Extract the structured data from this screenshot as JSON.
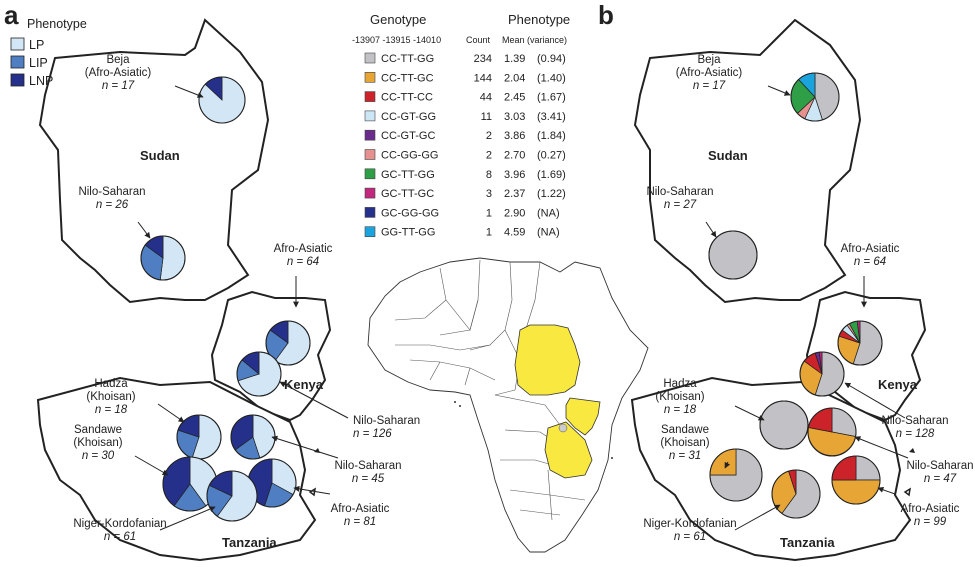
{
  "panels": {
    "a": "a",
    "b": "b"
  },
  "legend": {
    "title": "Phenotype",
    "items": [
      {
        "label": "LP",
        "color": "#d3e6f5"
      },
      {
        "label": "LIP",
        "color": "#4f7fc2"
      },
      {
        "label": "LNP",
        "color": "#25308a"
      }
    ]
  },
  "countries": {
    "sudan": "Sudan",
    "kenya": "Kenya",
    "tanzania": "Tanzania"
  },
  "table": {
    "col_genotype": "Genotype",
    "col_phenotype": "Phenotype",
    "sub_genotype": "-13907 -13915 -14010",
    "sub_count": "Count",
    "sub_mean": "Mean (variance)",
    "rows": [
      {
        "genotype": "CC-TT-GG",
        "count": "234",
        "mean": "1.39",
        "variance": "(0.94)",
        "color": "#c2c2c6"
      },
      {
        "genotype": "CC-TT-GC",
        "count": "144",
        "mean": "2.04",
        "variance": "(1.40)",
        "color": "#e7a535"
      },
      {
        "genotype": "CC-TT-CC",
        "count": "44",
        "mean": "2.45",
        "variance": "(1.67)",
        "color": "#cc2229"
      },
      {
        "genotype": "CC-GT-GG",
        "count": "11",
        "mean": "3.03",
        "variance": "(3.41)",
        "color": "#cde6f5"
      },
      {
        "genotype": "CC-GT-GC",
        "count": "2",
        "mean": "3.86",
        "variance": "(1.84)",
        "color": "#6a2b8c"
      },
      {
        "genotype": "CC-GG-GG",
        "count": "2",
        "mean": "2.70",
        "variance": "(0.27)",
        "color": "#e79090"
      },
      {
        "genotype": "GC-TT-GG",
        "count": "8",
        "mean": "3.96",
        "variance": "(1.69)",
        "color": "#2e9e47"
      },
      {
        "genotype": "GC-TT-GC",
        "count": "3",
        "mean": "2.37",
        "variance": "(1.22)",
        "color": "#c2277e"
      },
      {
        "genotype": "GC-GG-GG",
        "count": "1",
        "mean": "2.90",
        "variance": "(NA)",
        "color": "#25308a"
      },
      {
        "genotype": "GG-TT-GG",
        "count": "1",
        "mean": "4.59",
        "variance": "(NA)",
        "color": "#1aa3dd"
      }
    ]
  },
  "panel_a": {
    "groups": [
      {
        "id": "beja",
        "name": [
          "Beja",
          "(Afro-Asiatic)"
        ],
        "n": "n = 17",
        "slices": [
          0.87,
          0.0,
          0.13
        ]
      },
      {
        "id": "nilo_sudan",
        "name": [
          "Nilo-Saharan"
        ],
        "n": "n = 26",
        "slices": [
          0.52,
          0.33,
          0.15
        ]
      },
      {
        "id": "afro_kenya",
        "name": [
          "Afro-Asiatic"
        ],
        "n": "n = 64",
        "slices": [
          0.6,
          0.25,
          0.15
        ]
      },
      {
        "id": "nilo_kenya",
        "name": [
          "Nilo-Saharan"
        ],
        "n": "n = 126",
        "slices": [
          0.7,
          0.16,
          0.14
        ]
      },
      {
        "id": "hadza",
        "name": [
          "Hadza",
          "(Khoisan)"
        ],
        "n": "n = 18",
        "slices": [
          0.55,
          0.25,
          0.2
        ]
      },
      {
        "id": "sandawe",
        "name": [
          "Sandawe",
          "(Khoisan)"
        ],
        "n": "n = 30",
        "slices": [
          0.4,
          0.2,
          0.4
        ]
      },
      {
        "id": "nilo_tz",
        "name": [
          "Nilo-Saharan"
        ],
        "n": "n = 45",
        "slices": [
          0.45,
          0.2,
          0.35
        ]
      },
      {
        "id": "afro_tz",
        "name": [
          "Afro-Asiatic"
        ],
        "n": "n = 81",
        "slices": [
          0.33,
          0.22,
          0.45
        ]
      },
      {
        "id": "niger",
        "name": [
          "Niger-Kordofanian"
        ],
        "n": "n = 61",
        "slices": [
          0.6,
          0.22,
          0.18
        ]
      }
    ]
  },
  "panel_b": {
    "groups": [
      {
        "id": "beja",
        "name": [
          "Beja",
          "(Afro-Asiatic)"
        ],
        "n": "n = 17",
        "slices": [
          0.45,
          0.0,
          0.0,
          0.12,
          0.0,
          0.06,
          0.25,
          0.0,
          0.0,
          0.12
        ]
      },
      {
        "id": "nilo_sudan",
        "name": [
          "Nilo-Saharan"
        ],
        "n": "n = 27",
        "slices": [
          1.0,
          0,
          0,
          0,
          0,
          0,
          0,
          0,
          0,
          0
        ]
      },
      {
        "id": "afro_kenya",
        "name": [
          "Afro-Asiatic"
        ],
        "n": "n = 64",
        "slices": [
          0.55,
          0.25,
          0.05,
          0.05,
          0.0,
          0.02,
          0.06,
          0.02,
          0.0,
          0.0
        ]
      },
      {
        "id": "nilo_kenya",
        "name": [
          "Nilo-Saharan"
        ],
        "n": "n = 128",
        "slices": [
          0.55,
          0.3,
          0.1,
          0.0,
          0.03,
          0.0,
          0.0,
          0.02,
          0.0,
          0.0
        ]
      },
      {
        "id": "hadza",
        "name": [
          "Hadza",
          "(Khoisan)"
        ],
        "n": "n = 18",
        "slices": [
          1.0,
          0,
          0,
          0,
          0,
          0,
          0,
          0,
          0,
          0
        ]
      },
      {
        "id": "sandawe",
        "name": [
          "Sandawe",
          "(Khoisan)"
        ],
        "n": "n = 31",
        "slices": [
          0.75,
          0.25,
          0,
          0,
          0,
          0,
          0,
          0,
          0,
          0
        ]
      },
      {
        "id": "nilo_tz",
        "name": [
          "Nilo-Saharan"
        ],
        "n": "n = 47",
        "slices": [
          0.28,
          0.5,
          0.22,
          0,
          0,
          0,
          0,
          0,
          0,
          0
        ]
      },
      {
        "id": "afro_tz",
        "name": [
          "Afro-Asiatic"
        ],
        "n": "n = 99",
        "slices": [
          0.25,
          0.5,
          0.25,
          0,
          0,
          0,
          0,
          0,
          0,
          0
        ]
      },
      {
        "id": "niger",
        "name": [
          "Niger-Kordofanian"
        ],
        "n": "n = 61",
        "slices": [
          0.6,
          0.35,
          0.05,
          0,
          0,
          0,
          0,
          0,
          0,
          0
        ]
      }
    ]
  },
  "africa": {
    "highlight_color": "#f8e83f"
  }
}
